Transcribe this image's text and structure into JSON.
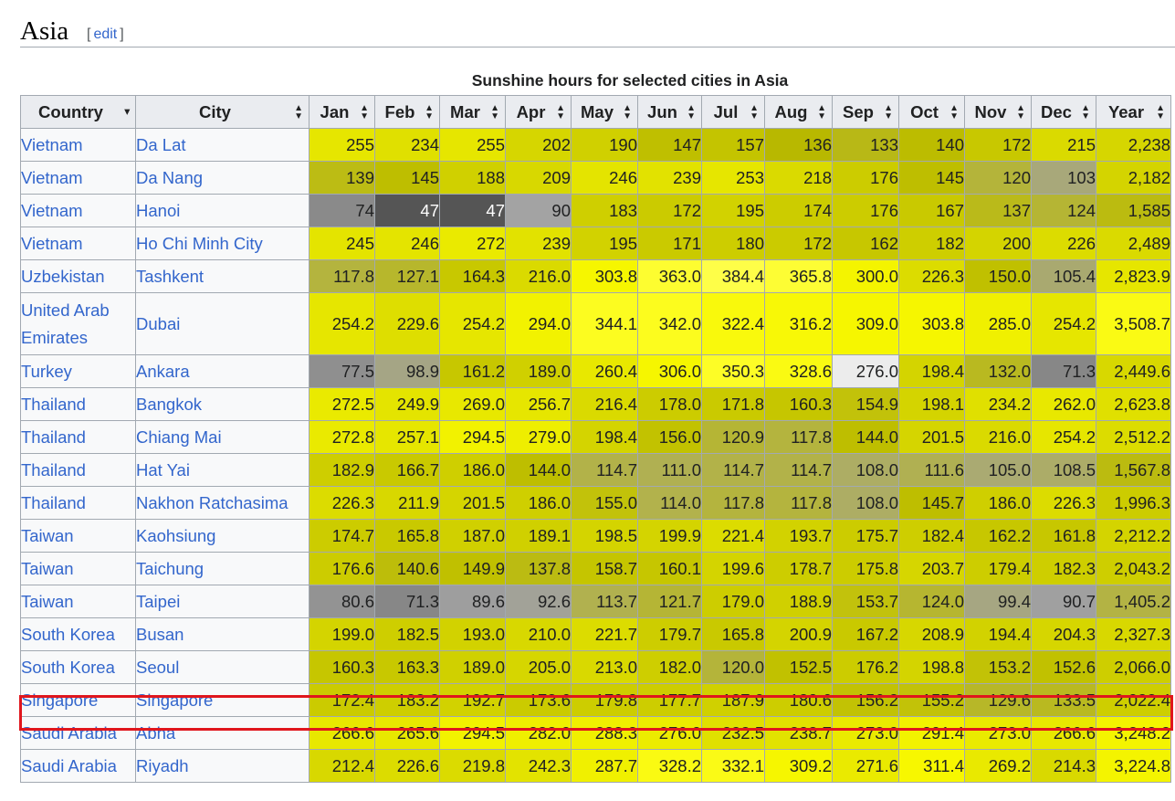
{
  "section": {
    "title": "Asia",
    "edit_open": "[",
    "edit_label": "edit",
    "edit_close": "]"
  },
  "table": {
    "caption": "Sunshine hours for selected cities in Asia",
    "headers": [
      "Country",
      "City",
      "Jan",
      "Feb",
      "Mar",
      "Apr",
      "May",
      "Jun",
      "Jul",
      "Aug",
      "Sep",
      "Oct",
      "Nov",
      "Dec",
      "Year"
    ],
    "rows": [
      {
        "country": "Vietnam",
        "city": "Da Lat",
        "values": [
          "255",
          "234",
          "255",
          "202",
          "190",
          "147",
          "157",
          "136",
          "133",
          "140",
          "172",
          "215",
          "2,238"
        ],
        "colors": [
          "#e6e600",
          "#e0e000",
          "#e6e600",
          "#d6d600",
          "#d0d000",
          "#bfbf00",
          "#c4c400",
          "#b8b800",
          "#b8b816",
          "#bcbc00",
          "#c8c800",
          "#dada00",
          "#d6d600"
        ]
      },
      {
        "country": "Vietnam",
        "city": "Da Nang",
        "values": [
          "139",
          "145",
          "188",
          "209",
          "246",
          "239",
          "253",
          "218",
          "176",
          "145",
          "120",
          "103",
          "2,182"
        ],
        "colors": [
          "#bcbc14",
          "#bebe00",
          "#d0d000",
          "#d8d800",
          "#e4e400",
          "#e2e200",
          "#e6e600",
          "#dada00",
          "#cccc00",
          "#bebe00",
          "#b4b43a",
          "#a8a87a",
          "#d4d400"
        ]
      },
      {
        "country": "Vietnam",
        "city": "Hanoi",
        "values": [
          "74",
          "47",
          "47",
          "90",
          "183",
          "172",
          "195",
          "174",
          "176",
          "167",
          "137",
          "124",
          "1,585"
        ],
        "colors": [
          "#8a8a8a",
          "#555555",
          "#555555",
          "#a3a3a3",
          "#cfcf00",
          "#cbcb00",
          "#d2d200",
          "#cccc00",
          "#cccc00",
          "#c9c900",
          "#baba1a",
          "#b5b534",
          "#bbbb10"
        ]
      },
      {
        "country": "Vietnam",
        "city": "Ho Chi Minh City",
        "values": [
          "245",
          "246",
          "272",
          "239",
          "195",
          "171",
          "180",
          "172",
          "162",
          "182",
          "200",
          "226",
          "2,489"
        ],
        "colors": [
          "#e4e400",
          "#e4e400",
          "#eaea00",
          "#e2e200",
          "#d2d200",
          "#caca00",
          "#cdcd00",
          "#cbcb00",
          "#c7c700",
          "#cece00",
          "#d4d400",
          "#dcdc00",
          "#dada00"
        ]
      },
      {
        "country": "Uzbekistan",
        "city": "Tashkent",
        "values": [
          "117.8",
          "127.1",
          "164.3",
          "216.0",
          "303.8",
          "363.0",
          "384.4",
          "365.8",
          "300.0",
          "226.3",
          "150.0",
          "105.4",
          "2,823.9"
        ],
        "colors": [
          "#b4b43e",
          "#b7b72c",
          "#c8c800",
          "#dada00",
          "#f6f600",
          "#fdfd30",
          "#fefe48",
          "#fdfd34",
          "#f4f400",
          "#dcdc00",
          "#c0c000",
          "#a9a970",
          "#e6e600"
        ]
      },
      {
        "country": "United Arab Emirates",
        "city": "Dubai",
        "values": [
          "254.2",
          "229.6",
          "254.2",
          "294.0",
          "344.1",
          "342.0",
          "322.4",
          "316.2",
          "309.0",
          "303.8",
          "285.0",
          "254.2",
          "3,508.7"
        ],
        "colors": [
          "#e6e600",
          "#dede00",
          "#e6e600",
          "#f2f200",
          "#fcfc20",
          "#fcfc1e",
          "#f9f90c",
          "#f8f806",
          "#f6f600",
          "#f6f600",
          "#f0f000",
          "#e6e600",
          "#fafa14"
        ],
        "tall": true
      },
      {
        "country": "Turkey",
        "city": "Ankara",
        "values": [
          "77.5",
          "98.9",
          "161.2",
          "189.0",
          "260.4",
          "306.0",
          "350.3",
          "328.6",
          "276.0",
          "198.4",
          "132.0",
          "71.3",
          "2,449.6"
        ],
        "colors": [
          "#8f8f8f",
          "#a5a585",
          "#c7c700",
          "#d0d000",
          "#e8e800",
          "#f6f600",
          "#fdfd26",
          "#fafa12",
          "#ececec",
          "#d4d400",
          "#b9b920",
          "#878787",
          "#d8d800"
        ]
      },
      {
        "country": "Thailand",
        "city": "Bangkok",
        "values": [
          "272.5",
          "249.9",
          "269.0",
          "256.7",
          "216.4",
          "178.0",
          "171.8",
          "160.3",
          "154.9",
          "198.1",
          "234.2",
          "262.0",
          "2,623.8"
        ],
        "colors": [
          "#eaea00",
          "#e4e400",
          "#e8e800",
          "#e6e600",
          "#dada00",
          "#cccc00",
          "#caca00",
          "#c6c600",
          "#c2c20a",
          "#d4d400",
          "#e0e000",
          "#e8e800",
          "#e0e000"
        ]
      },
      {
        "country": "Thailand",
        "city": "Chiang Mai",
        "values": [
          "272.8",
          "257.1",
          "294.5",
          "279.0",
          "198.4",
          "156.0",
          "120.9",
          "117.8",
          "144.0",
          "201.5",
          "216.0",
          "254.2",
          "2,512.2"
        ],
        "colors": [
          "#eaea00",
          "#e6e600",
          "#f2f200",
          "#eeee00",
          "#d4d400",
          "#c2c200",
          "#b5b535",
          "#b4b43e",
          "#bebe00",
          "#d5d500",
          "#dada00",
          "#e6e600",
          "#dcdc00"
        ]
      },
      {
        "country": "Thailand",
        "city": "Hat Yai",
        "values": [
          "182.9",
          "166.7",
          "186.0",
          "144.0",
          "114.7",
          "111.0",
          "114.7",
          "114.7",
          "108.0",
          "111.6",
          "105.0",
          "108.5",
          "1,567.8"
        ],
        "colors": [
          "#cece00",
          "#c9c900",
          "#cfcf00",
          "#bebe00",
          "#b2b249",
          "#b0b052",
          "#b2b249",
          "#b2b249",
          "#adad64",
          "#b0b052",
          "#aaaa72",
          "#acac68",
          "#bbbb10"
        ]
      },
      {
        "country": "Thailand",
        "city": "Nakhon Ratchasima",
        "values": [
          "226.3",
          "211.9",
          "201.5",
          "186.0",
          "155.0",
          "114.0",
          "117.8",
          "117.8",
          "108.0",
          "145.7",
          "186.0",
          "226.3",
          "1,996.3"
        ],
        "colors": [
          "#dcdc00",
          "#d8d800",
          "#d5d500",
          "#cfcf00",
          "#c2c20a",
          "#b2b24c",
          "#b4b43e",
          "#b4b43e",
          "#adad64",
          "#bebe00",
          "#cfcf00",
          "#dcdc00",
          "#cccc00"
        ]
      },
      {
        "country": "Taiwan",
        "city": "Kaohsiung",
        "values": [
          "174.7",
          "165.8",
          "187.0",
          "189.1",
          "198.5",
          "199.9",
          "221.4",
          "193.7",
          "175.7",
          "182.4",
          "162.2",
          "161.8",
          "2,212.2"
        ],
        "colors": [
          "#cccc00",
          "#c9c900",
          "#d0d000",
          "#d0d000",
          "#d4d400",
          "#d4d400",
          "#dcdc00",
          "#d2d200",
          "#cccc00",
          "#cece00",
          "#c7c700",
          "#c7c700",
          "#d4d400"
        ]
      },
      {
        "country": "Taiwan",
        "city": "Taichung",
        "values": [
          "176.6",
          "140.6",
          "149.9",
          "137.8",
          "158.7",
          "160.1",
          "199.6",
          "178.7",
          "175.8",
          "203.7",
          "179.4",
          "182.3",
          "2,043.2"
        ],
        "colors": [
          "#cccc00",
          "#bdbd0a",
          "#c0c000",
          "#bbbb12",
          "#c5c500",
          "#c6c600",
          "#d4d400",
          "#cdcd00",
          "#cccc00",
          "#d6d600",
          "#cdcd00",
          "#cece00",
          "#cece00"
        ]
      },
      {
        "country": "Taiwan",
        "city": "Taipei",
        "values": [
          "80.6",
          "71.3",
          "89.6",
          "92.6",
          "113.7",
          "121.7",
          "179.0",
          "188.9",
          "153.7",
          "124.0",
          "99.4",
          "90.7",
          "1,405.2"
        ],
        "colors": [
          "#939393",
          "#878787",
          "#9e9e9e",
          "#a2a298",
          "#b1b14f",
          "#b5b535",
          "#cdcd00",
          "#d0d000",
          "#c2c20c",
          "#b6b630",
          "#a6a682",
          "#a0a0a0",
          "#b3b344"
        ]
      },
      {
        "country": "South Korea",
        "city": "Busan",
        "values": [
          "199.0",
          "182.5",
          "193.0",
          "210.0",
          "221.7",
          "179.7",
          "165.8",
          "200.9",
          "167.2",
          "208.9",
          "194.4",
          "204.3",
          "2,327.3"
        ],
        "colors": [
          "#d4d400",
          "#cece00",
          "#d2d200",
          "#d8d800",
          "#dcdc00",
          "#cdcd00",
          "#c9c900",
          "#d4d400",
          "#c9c900",
          "#d7d700",
          "#d2d200",
          "#d6d600",
          "#d8d800"
        ]
      },
      {
        "country": "South Korea",
        "city": "Seoul",
        "values": [
          "160.3",
          "163.3",
          "189.0",
          "205.0",
          "213.0",
          "182.0",
          "120.0",
          "152.5",
          "176.2",
          "198.8",
          "153.2",
          "152.6",
          "2,066.0"
        ],
        "colors": [
          "#c6c600",
          "#c8c800",
          "#d0d000",
          "#d6d600",
          "#d9d900",
          "#cece00",
          "#b4b43a",
          "#c1c100",
          "#cccc00",
          "#d4d400",
          "#c2c206",
          "#c1c100",
          "#cece00"
        ]
      },
      {
        "country": "Singapore",
        "city": "Singapore",
        "values": [
          "172.4",
          "183.2",
          "192.7",
          "173.6",
          "179.8",
          "177.7",
          "187.9",
          "180.6",
          "156.2",
          "155.2",
          "129.6",
          "133.5",
          "2,022.4"
        ],
        "colors": [
          "#cbcb00",
          "#cece00",
          "#d2d200",
          "#cbcb00",
          "#cdcd00",
          "#cdcd00",
          "#d0d000",
          "#cdcd00",
          "#c2c204",
          "#c2c208",
          "#b7b728",
          "#b9b920",
          "#cece00"
        ]
      },
      {
        "country": "Saudi Arabia",
        "city": "Abha",
        "values": [
          "266.6",
          "265.6",
          "294.5",
          "282.0",
          "288.3",
          "276.0",
          "232.5",
          "238.7",
          "273.0",
          "291.4",
          "273.0",
          "266.6",
          "3,248.2"
        ],
        "colors": [
          "#e8e800",
          "#e8e800",
          "#f2f200",
          "#efef00",
          "#f0f000",
          "#ecec00",
          "#e0e000",
          "#e2e200",
          "#eaea00",
          "#f2f200",
          "#eaea00",
          "#e8e800",
          "#f4f400"
        ]
      },
      {
        "country": "Saudi Arabia",
        "city": "Riyadh",
        "values": [
          "212.4",
          "226.6",
          "219.8",
          "242.3",
          "287.7",
          "328.2",
          "332.1",
          "309.2",
          "271.6",
          "311.4",
          "269.2",
          "214.3",
          "3,224.8"
        ],
        "colors": [
          "#d8d800",
          "#dcdc00",
          "#dbdb00",
          "#e3e300",
          "#f0f000",
          "#fafa12",
          "#fafa16",
          "#f6f600",
          "#eaea00",
          "#f7f700",
          "#e9e900",
          "#d9d900",
          "#f4f400"
        ]
      }
    ],
    "highlighted_city": "Singapore"
  }
}
